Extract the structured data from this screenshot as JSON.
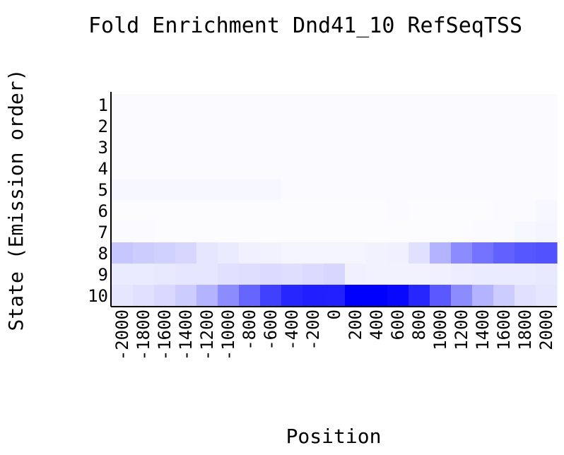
{
  "chart_data": {
    "type": "heatmap",
    "title": "Fold Enrichment Dnd41_10 RefSeqTSS",
    "xlabel": "Position",
    "ylabel": "State (Emission order)",
    "x": [
      "-2000",
      "-1800",
      "-1600",
      "-1400",
      "-1200",
      "-1000",
      "-800",
      "-600",
      "-400",
      "-200",
      "0",
      "200",
      "400",
      "600",
      "800",
      "1000",
      "1200",
      "1400",
      "1600",
      "1800",
      "2000"
    ],
    "y": [
      "1",
      "2",
      "3",
      "4",
      "5",
      "6",
      "7",
      "8",
      "9",
      "10"
    ],
    "color_low": "#ffffff",
    "color_high": "#0000ff",
    "values": [
      [
        0.02,
        0.02,
        0.02,
        0.02,
        0.02,
        0.02,
        0.02,
        0.02,
        0.02,
        0.02,
        0.02,
        0.02,
        0.02,
        0.02,
        0.02,
        0.02,
        0.02,
        0.02,
        0.02,
        0.02,
        0.02
      ],
      [
        0.02,
        0.02,
        0.02,
        0.02,
        0.02,
        0.02,
        0.02,
        0.02,
        0.02,
        0.02,
        0.02,
        0.02,
        0.02,
        0.02,
        0.02,
        0.02,
        0.02,
        0.02,
        0.02,
        0.02,
        0.02
      ],
      [
        0.02,
        0.02,
        0.02,
        0.02,
        0.02,
        0.02,
        0.02,
        0.02,
        0.02,
        0.02,
        0.02,
        0.02,
        0.02,
        0.02,
        0.02,
        0.02,
        0.02,
        0.02,
        0.02,
        0.02,
        0.02
      ],
      [
        0.02,
        0.02,
        0.02,
        0.02,
        0.02,
        0.02,
        0.02,
        0.02,
        0.02,
        0.02,
        0.02,
        0.02,
        0.02,
        0.02,
        0.02,
        0.02,
        0.02,
        0.02,
        0.02,
        0.02,
        0.02
      ],
      [
        0.03,
        0.03,
        0.03,
        0.03,
        0.03,
        0.03,
        0.03,
        0.03,
        0.02,
        0.02,
        0.02,
        0.02,
        0.02,
        0.02,
        0.02,
        0.02,
        0.02,
        0.02,
        0.02,
        0.02,
        0.02
      ],
      [
        0.01,
        0.01,
        0.01,
        0.01,
        0.01,
        0.01,
        0.01,
        0.01,
        0.01,
        0.01,
        0.01,
        0.01,
        0.01,
        0.02,
        0.01,
        0.01,
        0.01,
        0.01,
        0.02,
        0.02,
        0.03
      ],
      [
        0.02,
        0.02,
        0.01,
        0.01,
        0.01,
        0.01,
        0.01,
        0.01,
        0.01,
        0.01,
        0.01,
        0.01,
        0.01,
        0.01,
        0.01,
        0.01,
        0.01,
        0.02,
        0.02,
        0.03,
        0.04
      ],
      [
        0.22,
        0.2,
        0.18,
        0.16,
        0.1,
        0.08,
        0.06,
        0.05,
        0.04,
        0.04,
        0.04,
        0.04,
        0.05,
        0.06,
        0.12,
        0.3,
        0.45,
        0.55,
        0.62,
        0.66,
        0.68
      ],
      [
        0.08,
        0.08,
        0.09,
        0.1,
        0.1,
        0.12,
        0.13,
        0.14,
        0.13,
        0.14,
        0.16,
        0.06,
        0.05,
        0.05,
        0.05,
        0.06,
        0.07,
        0.08,
        0.08,
        0.08,
        0.09
      ],
      [
        0.1,
        0.12,
        0.15,
        0.2,
        0.3,
        0.45,
        0.6,
        0.75,
        0.85,
        0.88,
        0.87,
        1.0,
        1.0,
        0.97,
        0.85,
        0.65,
        0.45,
        0.3,
        0.2,
        0.12,
        0.1
      ]
    ]
  }
}
